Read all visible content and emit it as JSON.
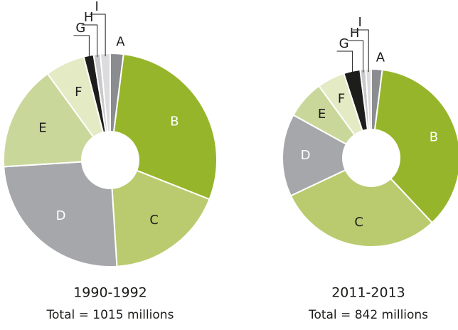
{
  "chart_data": [
    {
      "type": "pie",
      "title": "1990-1992",
      "subtitle": "Total = 1015 millions",
      "categories": [
        "A",
        "B",
        "C",
        "D",
        "E",
        "F",
        "G",
        "H",
        "I"
      ],
      "values": [
        2,
        29,
        18,
        25,
        16,
        6,
        1.5,
        1,
        1.5
      ],
      "colors": [
        "#8a8c8f",
        "#97b52a",
        "#b9cb6e",
        "#a6a7ab",
        "#c9d89a",
        "#e3eac4",
        "#1d1d1b",
        "#c8c9cb",
        "#dcdcde"
      ]
    },
    {
      "type": "pie",
      "title": "2011-2013",
      "subtitle": "Total = 842 millions",
      "categories": [
        "A",
        "B",
        "C",
        "D",
        "E",
        "F",
        "G",
        "H",
        "I"
      ],
      "values": [
        2,
        36,
        30,
        15,
        7,
        5,
        3,
        1,
        1
      ],
      "colors": [
        "#8a8c8f",
        "#97b52a",
        "#b9cb6e",
        "#a6a7ab",
        "#c9d89a",
        "#e3eac4",
        "#1d1d1b",
        "#c8c9cb",
        "#dcdcde"
      ]
    }
  ]
}
